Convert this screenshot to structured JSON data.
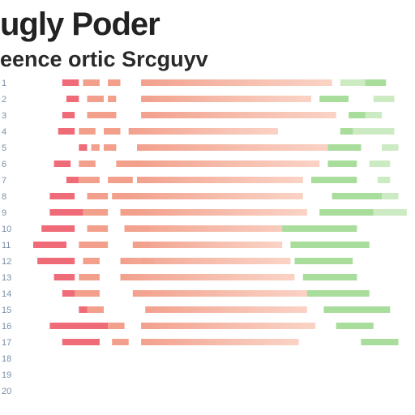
{
  "title": "ugly Poder",
  "subtitle": "eence ortic Srcguyv",
  "colors": {
    "red": "#ef6b78",
    "salmon": "#f2a08c",
    "peach": "#f8c4b2",
    "green": "#a9dd9c",
    "green_light": "#cdebc3",
    "label": "#7a8fa8"
  },
  "chart_data": {
    "type": "bar",
    "title": "ugly Poder",
    "subtitle": "eence ortic Srcguyv",
    "xlabel": "",
    "ylabel": "",
    "xlim": [
      0,
      100
    ],
    "grid": false,
    "legend": "none",
    "categories": [
      "1",
      "2",
      "3",
      "4",
      "5",
      "6",
      "7",
      "8",
      "9",
      "10",
      "11",
      "12",
      "13",
      "14",
      "15",
      "16",
      "17",
      "18",
      "19",
      "20"
    ],
    "series": [
      {
        "color": "red",
        "values": [
          {
            "start": 15,
            "end": 19
          },
          {
            "start": 16,
            "end": 19
          },
          {
            "start": 15,
            "end": 18
          },
          {
            "start": 14,
            "end": 18
          },
          {
            "start": 19,
            "end": 21
          },
          {
            "start": 13,
            "end": 17
          },
          {
            "start": 16,
            "end": 19
          },
          {
            "start": 12,
            "end": 18
          },
          {
            "start": 12,
            "end": 20
          },
          {
            "start": 10,
            "end": 18
          },
          {
            "start": 8,
            "end": 16
          },
          {
            "start": 9,
            "end": 18
          },
          {
            "start": 13,
            "end": 18
          },
          {
            "start": 15,
            "end": 20
          },
          {
            "start": 19,
            "end": 23
          },
          {
            "start": 12,
            "end": 26
          },
          {
            "start": 15,
            "end": 24
          }
        ]
      },
      {
        "color": "salmon",
        "values": [
          {
            "start": 20,
            "end": 24
          },
          {
            "start": 21,
            "end": 25
          },
          {
            "start": 21,
            "end": 25
          },
          {
            "start": 19,
            "end": 23
          },
          {
            "start": 22,
            "end": 24
          },
          {
            "start": 19,
            "end": 23
          },
          {
            "start": 19,
            "end": 24
          },
          {
            "start": 21,
            "end": 26
          },
          {
            "start": 20,
            "end": 26
          },
          {
            "start": 21,
            "end": 26
          },
          {
            "start": 19,
            "end": 26
          },
          {
            "start": 20,
            "end": 24
          },
          {
            "start": 19,
            "end": 24
          },
          {
            "start": 18,
            "end": 24
          },
          {
            "start": 21,
            "end": 25
          },
          {
            "start": 26,
            "end": 30
          },
          {
            "start": 27,
            "end": 31
          }
        ]
      },
      {
        "color": "salmon",
        "values": [
          {
            "start": 26,
            "end": 29
          },
          {
            "start": 26,
            "end": 28
          },
          {
            "start": 25,
            "end": 28
          },
          {
            "start": 25,
            "end": 29
          },
          {
            "start": 25,
            "end": 28
          },
          {
            "start": 28,
            "end": 35
          },
          {
            "start": 26,
            "end": 32
          },
          {
            "start": 27,
            "end": 32
          },
          {
            "start": 29,
            "end": 33
          },
          {
            "start": 30,
            "end": 36
          },
          {
            "start": 32,
            "end": 36
          },
          {
            "start": 34,
            "end": 37
          }
        ]
      },
      {
        "color": "peach",
        "values": [
          {
            "start": 34,
            "end": 80
          },
          {
            "start": 34,
            "end": 75
          },
          {
            "start": 34,
            "end": 81
          },
          {
            "start": 31,
            "end": 67
          },
          {
            "start": 33,
            "end": 80
          },
          {
            "start": 33,
            "end": 77
          },
          {
            "start": 33,
            "end": 73
          },
          {
            "start": 31,
            "end": 73
          },
          {
            "start": 33,
            "end": 74
          },
          {
            "start": 30,
            "end": 77
          },
          {
            "start": 33,
            "end": 68
          },
          {
            "start": 29,
            "end": 70
          },
          {
            "start": 29,
            "end": 71
          },
          {
            "start": 32,
            "end": 75
          },
          {
            "start": 35,
            "end": 74
          },
          {
            "start": 34,
            "end": 76
          },
          {
            "start": 34,
            "end": 72
          }
        ]
      },
      {
        "color": "green",
        "values": [
          {
            "start": 83,
            "end": 93
          },
          {
            "start": 77,
            "end": 84
          },
          {
            "start": 84,
            "end": 92
          },
          {
            "start": 82,
            "end": 90
          },
          {
            "start": 79,
            "end": 87
          },
          {
            "start": 79,
            "end": 86
          },
          {
            "start": 75,
            "end": 86
          },
          {
            "start": 80,
            "end": 92
          },
          {
            "start": 77,
            "end": 90
          },
          {
            "start": 68,
            "end": 86
          },
          {
            "start": 70,
            "end": 89
          },
          {
            "start": 71,
            "end": 85
          },
          {
            "start": 73,
            "end": 86
          },
          {
            "start": 74,
            "end": 89
          },
          {
            "start": 78,
            "end": 94
          },
          {
            "start": 81,
            "end": 90
          },
          {
            "start": 87,
            "end": 96
          }
        ]
      },
      {
        "color": "green_light",
        "values": [
          {
            "start": 82,
            "end": 88
          },
          {
            "start": 90,
            "end": 95
          },
          {
            "start": 88,
            "end": 92
          },
          {
            "start": 85,
            "end": 95
          },
          {
            "start": 92,
            "end": 96
          },
          {
            "start": 89,
            "end": 94
          },
          {
            "start": 91,
            "end": 94
          },
          {
            "start": 92,
            "end": 96
          },
          {
            "start": 90,
            "end": 98
          }
        ]
      }
    ]
  }
}
